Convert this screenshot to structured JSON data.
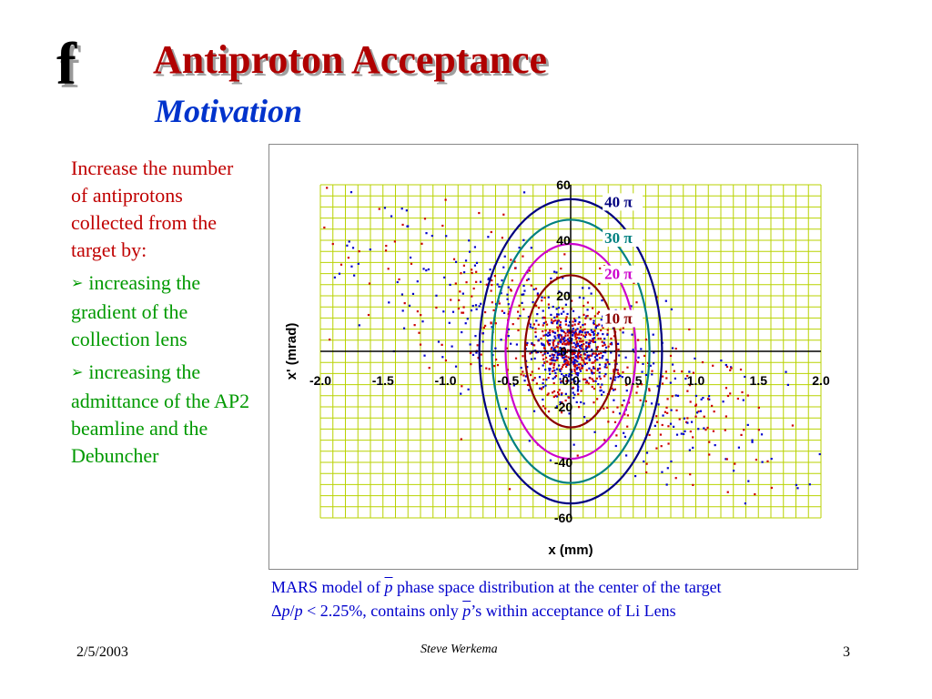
{
  "slide": {
    "logo_glyph": "f",
    "title": "Antiproton Acceptance",
    "subtitle": "Motivation",
    "intro": "Increase the number of antiprotons collected from the target by:",
    "bullets": [
      "increasing the gradient of the collection lens",
      "increasing the admittance of the AP2 beamline and the Debuncher"
    ],
    "bullet_icon": "arrow-bullet-icon",
    "caption": {
      "line1_a": "MARS model of ",
      "line1_sym": "p",
      "line1_b": " phase space distribution at the center of the target",
      "line2_a": "Δ",
      "line2_p1": "p",
      "line2_slash": "/",
      "line2_p2": "p",
      "line2_b": " < 2.25%, contains only ",
      "line2_sym": "p",
      "line2_c": "’s within acceptance of Li Lens"
    },
    "footer": {
      "date": "2/5/2003",
      "author": "Steve Werkema",
      "page": "3"
    }
  },
  "colors": {
    "title": "#b00000",
    "subtitle": "#0033cc",
    "intro": "#c00000",
    "bullets": "#009900",
    "caption": "#0000cc"
  },
  "chart_data": {
    "type": "scatter",
    "xlabel": "x (mm)",
    "ylabel": "x' (mrad)",
    "xlim": [
      -2.0,
      2.0
    ],
    "ylim": [
      -60,
      60
    ],
    "xticks": [
      -2.0,
      -1.5,
      -1.0,
      -0.5,
      0.0,
      0.5,
      1.0,
      1.5,
      2.0
    ],
    "xtick_labels": [
      "-2.0",
      "-1.5",
      "-1.0",
      "-0.5",
      "0.0",
      "0.5",
      "1.0",
      "1.5",
      "2.0"
    ],
    "yticks": [
      60,
      40,
      20,
      0,
      -20,
      -40,
      -60
    ],
    "ytick_labels": [
      "60",
      "40",
      "20",
      "0",
      "-20",
      "-40",
      "-60"
    ],
    "grid": true,
    "grid_color": "#b8d200",
    "grid_minor_x": 0.1,
    "grid_minor_y": 4,
    "point_colors": [
      "#cc0000",
      "#0000cc"
    ],
    "acceptance_ellipses": [
      {
        "label": "40 π",
        "color": "#000080",
        "a": 0.73,
        "b": 54.8,
        "label_x": 0.27,
        "label_y": 52
      },
      {
        "label": "30 π",
        "color": "#008080",
        "a": 0.63,
        "b": 47.4,
        "label_x": 0.27,
        "label_y": 39
      },
      {
        "label": "20 π",
        "color": "#cc00cc",
        "a": 0.52,
        "b": 38.7,
        "label_x": 0.27,
        "label_y": 26
      },
      {
        "label": "10 π",
        "color": "#8b0000",
        "a": 0.365,
        "b": 27.4,
        "label_x": 0.27,
        "label_y": 10
      }
    ]
  }
}
